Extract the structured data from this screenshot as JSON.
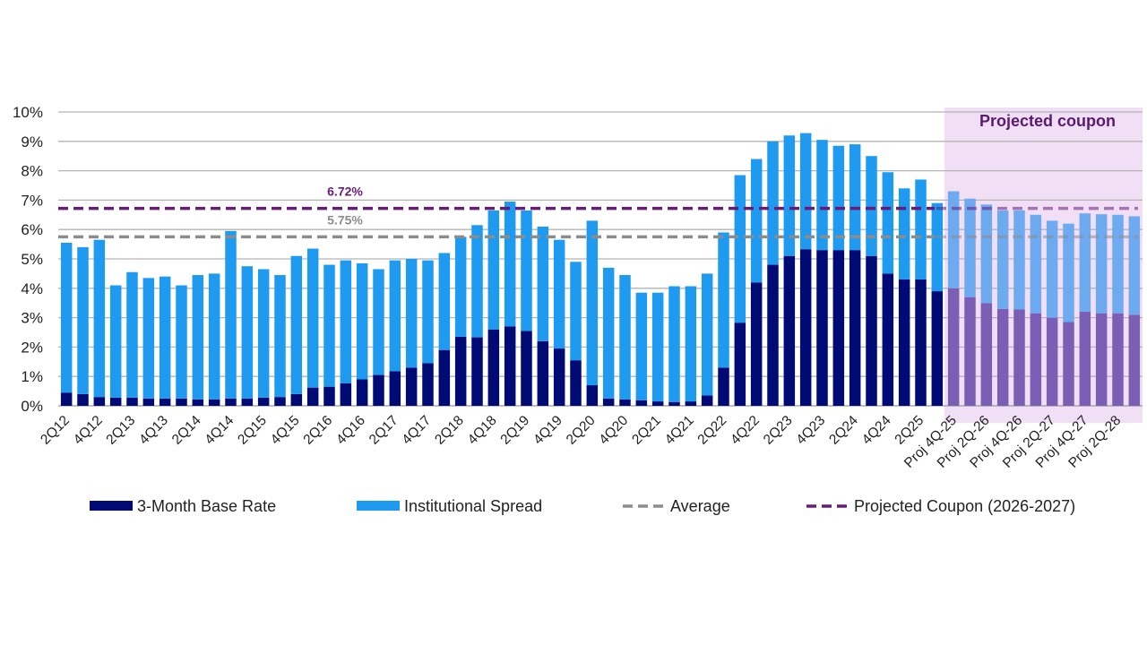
{
  "chart_data": {
    "type": "bar",
    "stacked": true,
    "categories": [
      "2Q12",
      "",
      "4Q12",
      "",
      "2Q13",
      "",
      "4Q13",
      "",
      "2Q14",
      "",
      "4Q14",
      "",
      "2Q15",
      "",
      "4Q15",
      "",
      "2Q16",
      "",
      "4Q16",
      "",
      "2Q17",
      "",
      "4Q17",
      "",
      "2Q18",
      "",
      "4Q18",
      "",
      "2Q19",
      "",
      "4Q19",
      "",
      "2Q20",
      "",
      "4Q20",
      "",
      "2Q21",
      "",
      "4Q21",
      "",
      "2Q22",
      "",
      "4Q22",
      "",
      "2Q23",
      "",
      "4Q23",
      "",
      "2Q24",
      "",
      "4Q24",
      "",
      "2Q25",
      "",
      "Proj 4Q-25",
      "",
      "Proj 2Q-26",
      "",
      "Proj 4Q-26",
      "",
      "Proj 2Q-27",
      "",
      "Proj 4Q-27",
      "",
      "Proj 2Q-28",
      ""
    ],
    "projected_start_index": 54,
    "series": [
      {
        "name": "3-Month Base Rate",
        "color": "#000a74",
        "projected_color": "#7a5fb5",
        "values": [
          0.45,
          0.4,
          0.3,
          0.28,
          0.28,
          0.25,
          0.25,
          0.25,
          0.22,
          0.22,
          0.25,
          0.25,
          0.28,
          0.3,
          0.4,
          0.62,
          0.65,
          0.77,
          0.9,
          1.05,
          1.18,
          1.3,
          1.45,
          1.9,
          2.35,
          2.33,
          2.6,
          2.7,
          2.55,
          2.2,
          1.95,
          1.55,
          0.7,
          0.25,
          0.22,
          0.19,
          0.15,
          0.13,
          0.15,
          0.35,
          1.3,
          2.83,
          4.2,
          4.8,
          5.1,
          5.33,
          5.3,
          5.3,
          5.3,
          5.1,
          4.5,
          4.3,
          4.3,
          3.9,
          4.0,
          3.7,
          3.5,
          3.3,
          3.28,
          3.15,
          3.0,
          2.85,
          3.2,
          3.15,
          3.15,
          3.1
        ]
      },
      {
        "name": "Institutional Spread",
        "color": "#1e9bf0",
        "projected_color": "#6eaaf0",
        "values": [
          5.1,
          5.0,
          5.35,
          3.82,
          4.27,
          4.1,
          4.15,
          3.85,
          4.23,
          4.28,
          5.7,
          4.5,
          4.37,
          4.15,
          4.7,
          4.73,
          4.15,
          4.18,
          3.95,
          3.6,
          3.77,
          3.7,
          3.5,
          3.3,
          3.4,
          3.82,
          4.05,
          4.25,
          4.1,
          3.9,
          3.7,
          3.35,
          5.6,
          4.45,
          4.23,
          3.66,
          3.7,
          3.94,
          3.92,
          4.15,
          4.6,
          5.02,
          4.2,
          4.2,
          4.1,
          3.95,
          3.75,
          3.55,
          3.6,
          3.4,
          3.45,
          3.1,
          3.4,
          3.0,
          3.3,
          3.35,
          3.35,
          3.35,
          3.37,
          3.35,
          3.3,
          3.35,
          3.35,
          3.37,
          3.35,
          3.35
        ]
      }
    ],
    "reference_lines": [
      {
        "name": "Average",
        "value": 5.75,
        "label": "5.75%",
        "color": "#8c8c8c"
      },
      {
        "name": "Projected Coupon (2026-2027)",
        "value": 6.72,
        "label": "6.72%",
        "color": "#6a1b7a"
      }
    ],
    "shaded_region": {
      "label": "Projected coupon",
      "color": "#f1dff6",
      "label_color": "#5a1a6e"
    },
    "yticks": [
      "0%",
      "1%",
      "2%",
      "3%",
      "4%",
      "5%",
      "6%",
      "7%",
      "8%",
      "9%",
      "10%"
    ],
    "ylim": [
      0,
      10
    ],
    "grid": true,
    "legend_position": "bottom",
    "title": "",
    "xlabel": "",
    "ylabel": ""
  }
}
